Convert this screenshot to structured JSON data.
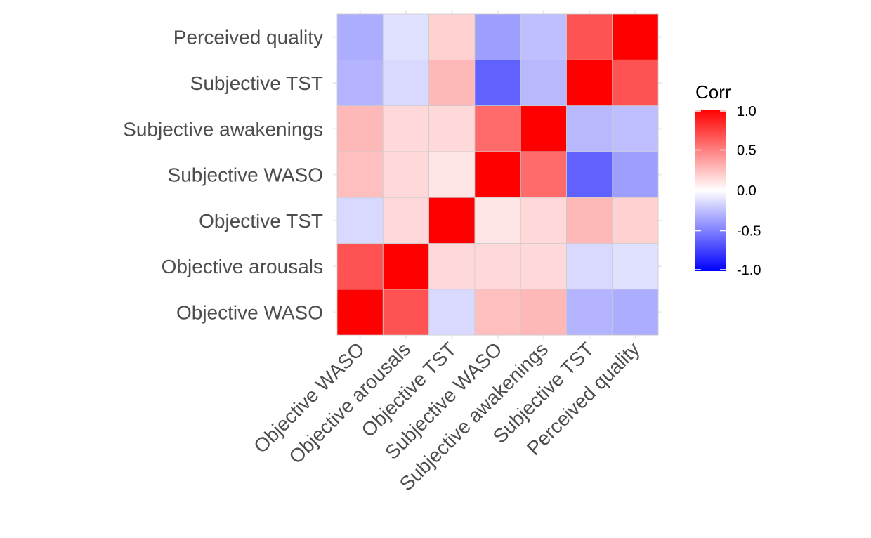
{
  "chart_data": {
    "type": "heatmap",
    "variables": [
      "Objective WASO",
      "Objective arousals",
      "Objective TST",
      "Subjective WASO",
      "Subjective awakenings",
      "Subjective TST",
      "Perceived quality"
    ],
    "matrix": [
      [
        1.0,
        0.68,
        -0.15,
        0.25,
        0.28,
        -0.3,
        -0.32
      ],
      [
        0.68,
        1.0,
        0.15,
        0.15,
        0.15,
        -0.15,
        -0.12
      ],
      [
        -0.15,
        0.15,
        1.0,
        0.1,
        0.15,
        0.28,
        0.18
      ],
      [
        0.25,
        0.15,
        0.1,
        1.0,
        0.58,
        -0.62,
        -0.38
      ],
      [
        0.28,
        0.15,
        0.15,
        0.58,
        1.0,
        -0.28,
        -0.25
      ],
      [
        -0.3,
        -0.15,
        0.28,
        -0.62,
        -0.28,
        1.0,
        0.68
      ],
      [
        -0.32,
        -0.12,
        0.18,
        -0.38,
        -0.25,
        0.68,
        1.0
      ]
    ],
    "color_scale": {
      "low": "#0000ff",
      "mid": "#ffffff",
      "high": "#ff0000",
      "limits": [
        -1.0,
        1.0
      ]
    },
    "legend": {
      "title": "Corr",
      "ticks": [
        "1.0",
        "0.5",
        "0.0",
        "-0.5",
        "-1.0"
      ],
      "placement": "right"
    },
    "grid": true
  }
}
